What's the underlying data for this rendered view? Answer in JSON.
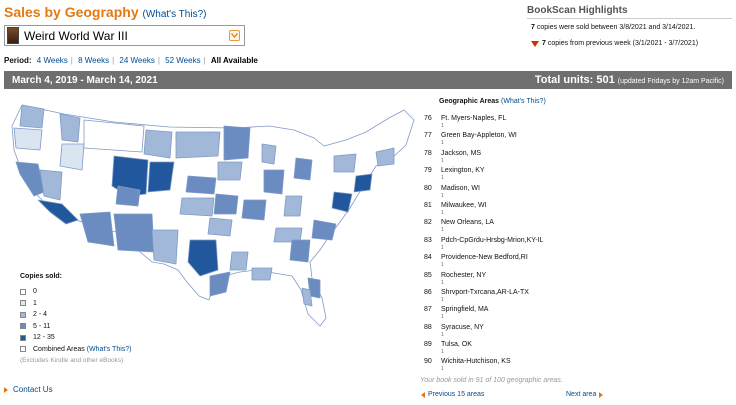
{
  "header": {
    "title": "Sales by Geography",
    "whats_this": "(What's This?)"
  },
  "book": {
    "title": "Weird World War III"
  },
  "period": {
    "label": "Period:",
    "options": [
      "4 Weeks",
      "8 Weeks",
      "24 Weeks",
      "52 Weeks"
    ],
    "current": "All Available"
  },
  "highlights": {
    "title": "BookScan Highlights",
    "line1_count": "7",
    "line1_text": "copies were sold between 3/8/2021 and 3/14/2021.",
    "line2_count": "7",
    "line2_text": "copies from previous week (3/1/2021 - 3/7/2021)"
  },
  "band": {
    "range": "March 4, 2019 - March 14, 2021",
    "total": "Total units: 501",
    "note": "(updated Fridays by 12am Pacific)"
  },
  "colors": {
    "c0": "#ffffff",
    "c1": "#dbe5f1",
    "c2": "#a2b8d8",
    "c3": "#6a8cc1",
    "c4": "#21579c",
    "accent": "#e47911",
    "band": "#6f6f6f"
  },
  "legend": {
    "title": "Copies sold:",
    "items": [
      "0",
      "1",
      "2 - 4",
      "5 - 11",
      "12 - 35"
    ],
    "combined": "Combined Areas",
    "combined_link": "(What's This?)",
    "note": "(Excludes Kindle and other eBooks)"
  },
  "geo": {
    "title": "Geographic Areas",
    "whats_this": "(What's This?)",
    "items": [
      {
        "rank": "76",
        "name": "Ft. Myers-Naples, FL",
        "count": "1"
      },
      {
        "rank": "77",
        "name": "Green Bay-Appleton, WI",
        "count": "1"
      },
      {
        "rank": "78",
        "name": "Jackson, MS",
        "count": "1"
      },
      {
        "rank": "79",
        "name": "Lexington, KY",
        "count": "1"
      },
      {
        "rank": "80",
        "name": "Madison, WI",
        "count": "1"
      },
      {
        "rank": "81",
        "name": "Milwaukee, WI",
        "count": "1"
      },
      {
        "rank": "82",
        "name": "New Orleans, LA",
        "count": "1"
      },
      {
        "rank": "83",
        "name": "Pdch-CpGrdu-Hrsbg-Mrion,KY-IL",
        "count": "1"
      },
      {
        "rank": "84",
        "name": "Providence-New Bedford,RI",
        "count": "1"
      },
      {
        "rank": "85",
        "name": "Rochester, NY",
        "count": "1"
      },
      {
        "rank": "86",
        "name": "Shrvport-Txrcana,AR-LA-TX",
        "count": "1"
      },
      {
        "rank": "87",
        "name": "Springfield, MA",
        "count": "1"
      },
      {
        "rank": "88",
        "name": "Syracuse, NY",
        "count": "1"
      },
      {
        "rank": "89",
        "name": "Tulsa, OK",
        "count": "1"
      },
      {
        "rank": "90",
        "name": "Wichita-Hutchison, KS",
        "count": "1"
      }
    ],
    "sold_note": "Your book sold in 91 of 100 geographic areas.",
    "prev": "Previous 15 areas",
    "next": "Next area"
  },
  "footer": {
    "contact": "Contact Us"
  }
}
